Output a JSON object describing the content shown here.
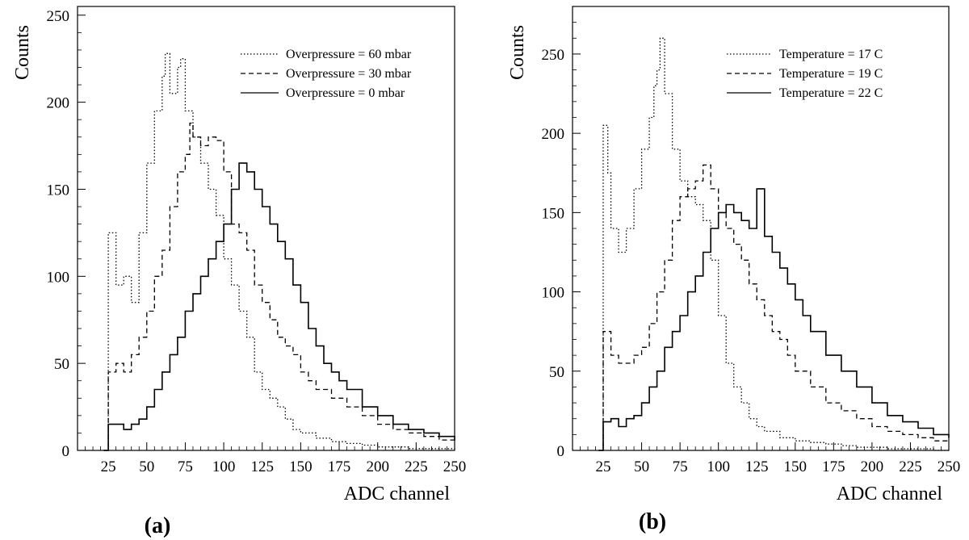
{
  "chart_data": [
    {
      "type": "line",
      "panel_label": "(a)",
      "xlabel": "ADC channel",
      "ylabel": "Counts",
      "xlim": [
        5,
        250
      ],
      "ylim": [
        0,
        255
      ],
      "x_ticks": [
        25,
        50,
        75,
        100,
        125,
        150,
        175,
        200,
        225,
        250
      ],
      "y_ticks": [
        0,
        50,
        100,
        150,
        200,
        250
      ],
      "grid": false,
      "legend_position": "top-right",
      "line_styles": [
        "dotted",
        "dashed",
        "solid"
      ],
      "series": [
        {
          "name": "Overpressure = 60 mbar",
          "style": "dotted",
          "x": [
            22,
            25,
            30,
            35,
            40,
            45,
            50,
            55,
            60,
            62,
            65,
            70,
            72,
            75,
            80,
            85,
            90,
            95,
            100,
            105,
            110,
            115,
            120,
            125,
            130,
            135,
            140,
            145,
            150,
            160,
            170,
            180,
            190,
            200,
            210,
            220,
            230,
            240,
            250
          ],
          "y": [
            0,
            125,
            95,
            100,
            85,
            125,
            165,
            195,
            215,
            228,
            205,
            220,
            225,
            195,
            180,
            165,
            150,
            135,
            110,
            95,
            80,
            65,
            45,
            35,
            30,
            25,
            18,
            12,
            10,
            7,
            5,
            4,
            3,
            2,
            2,
            1,
            1,
            1,
            0
          ]
        },
        {
          "name": "Overpressure = 30 mbar",
          "style": "dashed",
          "x": [
            22,
            25,
            30,
            35,
            40,
            45,
            50,
            55,
            60,
            65,
            70,
            75,
            78,
            80,
            85,
            90,
            95,
            100,
            105,
            110,
            115,
            120,
            125,
            130,
            135,
            140,
            145,
            150,
            155,
            160,
            170,
            180,
            190,
            200,
            210,
            220,
            230,
            240,
            250
          ],
          "y": [
            0,
            45,
            50,
            45,
            55,
            65,
            80,
            100,
            115,
            140,
            160,
            170,
            188,
            180,
            175,
            180,
            178,
            160,
            130,
            125,
            115,
            95,
            85,
            75,
            65,
            60,
            55,
            45,
            40,
            35,
            30,
            25,
            20,
            15,
            12,
            10,
            8,
            6,
            5
          ]
        },
        {
          "name": "Overpressure =  0 mbar",
          "style": "solid",
          "x": [
            22,
            25,
            30,
            35,
            40,
            45,
            50,
            55,
            60,
            65,
            70,
            75,
            80,
            85,
            90,
            95,
            100,
            105,
            110,
            115,
            120,
            125,
            130,
            135,
            140,
            145,
            150,
            155,
            160,
            165,
            170,
            175,
            180,
            190,
            200,
            210,
            220,
            230,
            240,
            250
          ],
          "y": [
            0,
            15,
            15,
            12,
            15,
            18,
            25,
            35,
            45,
            55,
            65,
            80,
            90,
            100,
            110,
            120,
            130,
            150,
            165,
            160,
            150,
            140,
            130,
            120,
            110,
            95,
            85,
            70,
            60,
            50,
            45,
            40,
            35,
            25,
            20,
            15,
            12,
            10,
            8,
            6
          ]
        }
      ]
    },
    {
      "type": "line",
      "panel_label": "(b)",
      "xlabel": "ADC channel",
      "ylabel": "Counts",
      "xlim": [
        5,
        250
      ],
      "ylim": [
        0,
        280
      ],
      "x_ticks": [
        25,
        50,
        75,
        100,
        125,
        150,
        175,
        200,
        225,
        250
      ],
      "y_ticks": [
        0,
        50,
        100,
        150,
        200,
        250
      ],
      "grid": false,
      "legend_position": "top-right",
      "line_styles": [
        "dotted",
        "dashed",
        "solid"
      ],
      "series": [
        {
          "name": "Temperature = 17 C",
          "style": "dotted",
          "x": [
            22,
            25,
            28,
            30,
            35,
            40,
            45,
            50,
            55,
            58,
            60,
            62,
            65,
            70,
            75,
            80,
            85,
            90,
            95,
            100,
            105,
            110,
            115,
            120,
            125,
            130,
            140,
            150,
            160,
            170,
            180,
            190,
            200,
            210,
            220,
            230,
            240,
            250
          ],
          "y": [
            0,
            205,
            175,
            140,
            125,
            140,
            165,
            190,
            210,
            230,
            240,
            260,
            225,
            190,
            170,
            160,
            155,
            145,
            120,
            85,
            55,
            40,
            30,
            20,
            15,
            12,
            8,
            6,
            5,
            4,
            3,
            2,
            2,
            1,
            1,
            1,
            0,
            0
          ]
        },
        {
          "name": "Temperature = 19 C",
          "style": "dashed",
          "x": [
            22,
            25,
            30,
            35,
            40,
            45,
            50,
            55,
            60,
            65,
            70,
            75,
            80,
            85,
            90,
            95,
            100,
            105,
            110,
            115,
            120,
            125,
            130,
            135,
            140,
            145,
            150,
            160,
            170,
            180,
            190,
            200,
            210,
            220,
            230,
            240,
            250
          ],
          "y": [
            0,
            75,
            60,
            55,
            55,
            60,
            65,
            80,
            100,
            120,
            145,
            160,
            165,
            170,
            180,
            165,
            150,
            140,
            130,
            120,
            105,
            95,
            85,
            75,
            70,
            60,
            50,
            40,
            30,
            25,
            20,
            15,
            12,
            10,
            8,
            6,
            5
          ]
        },
        {
          "name": "Temperature = 22 C",
          "style": "solid",
          "x": [
            22,
            25,
            30,
            35,
            40,
            45,
            50,
            55,
            60,
            65,
            70,
            75,
            80,
            85,
            90,
            95,
            100,
            105,
            110,
            115,
            120,
            125,
            130,
            135,
            140,
            145,
            150,
            155,
            160,
            170,
            180,
            190,
            200,
            210,
            220,
            230,
            240,
            250
          ],
          "y": [
            0,
            18,
            20,
            15,
            20,
            22,
            30,
            40,
            50,
            65,
            75,
            85,
            100,
            110,
            125,
            140,
            150,
            155,
            150,
            145,
            140,
            165,
            135,
            125,
            115,
            105,
            95,
            85,
            75,
            60,
            50,
            40,
            30,
            22,
            18,
            14,
            10,
            8
          ]
        }
      ]
    }
  ]
}
